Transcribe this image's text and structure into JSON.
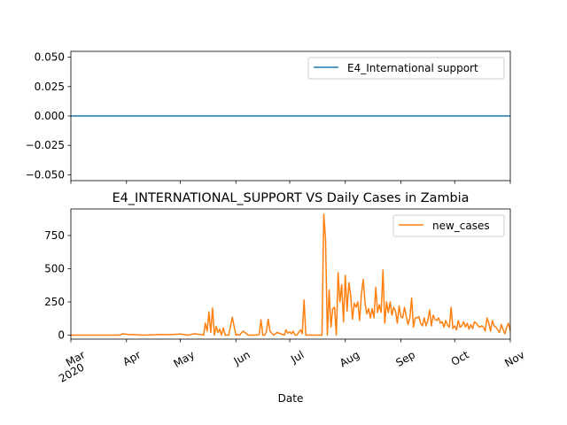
{
  "chart_data": [
    {
      "type": "line",
      "title": "",
      "xlabel": "",
      "ylabel": "",
      "ylim": [
        -0.055,
        0.055
      ],
      "yticks": [
        "0.050",
        "0.025",
        "0.000",
        "−0.025",
        "−0.050"
      ],
      "ytick_values": [
        0.05,
        0.025,
        0.0,
        -0.025,
        -0.05
      ],
      "legend_position": "upper right",
      "series": [
        {
          "name": "E4_International support",
          "color": "#1f77b4",
          "x": [
            "2020-03-01",
            "2020-11-01"
          ],
          "values": [
            0,
            0
          ]
        }
      ]
    },
    {
      "type": "line",
      "title": "E4_INTERNATIONAL_SUPPORT VS Daily Cases in Zambia",
      "xlabel": "Date",
      "ylabel": "",
      "ylim": [
        -30,
        950
      ],
      "yticks": [
        "0",
        "250",
        "500",
        "750"
      ],
      "ytick_values": [
        0,
        250,
        500,
        750
      ],
      "xlim": [
        "2020-03-01",
        "2020-11-01"
      ],
      "xticks": [
        {
          "date": "2020-03-01",
          "label": "Mar",
          "sublabel": "2020"
        },
        {
          "date": "2020-04-01",
          "label": "Apr",
          "sublabel": ""
        },
        {
          "date": "2020-05-01",
          "label": "May",
          "sublabel": ""
        },
        {
          "date": "2020-06-01",
          "label": "Jun",
          "sublabel": ""
        },
        {
          "date": "2020-07-01",
          "label": "Jul",
          "sublabel": ""
        },
        {
          "date": "2020-08-01",
          "label": "Aug",
          "sublabel": ""
        },
        {
          "date": "2020-09-01",
          "label": "Sep",
          "sublabel": ""
        },
        {
          "date": "2020-10-01",
          "label": "Oct",
          "sublabel": ""
        },
        {
          "date": "2020-11-01",
          "label": "Nov",
          "sublabel": ""
        }
      ],
      "legend_position": "upper right",
      "series": [
        {
          "name": "new_cases",
          "color": "#ff7f0e",
          "x": [
            "2020-03-01",
            "2020-03-18",
            "2020-03-28",
            "2020-03-30",
            "2020-04-02",
            "2020-04-06",
            "2020-04-10",
            "2020-04-15",
            "2020-04-20",
            "2020-04-25",
            "2020-05-01",
            "2020-05-05",
            "2020-05-09",
            "2020-05-12",
            "2020-05-14",
            "2020-05-15",
            "2020-05-16",
            "2020-05-17",
            "2020-05-18",
            "2020-05-19",
            "2020-05-20",
            "2020-05-21",
            "2020-05-22",
            "2020-05-23",
            "2020-05-24",
            "2020-05-25",
            "2020-05-26",
            "2020-05-27",
            "2020-05-28",
            "2020-05-30",
            "2020-06-01",
            "2020-06-02",
            "2020-06-03",
            "2020-06-05",
            "2020-06-08",
            "2020-06-10",
            "2020-06-12",
            "2020-06-14",
            "2020-06-15",
            "2020-06-16",
            "2020-06-17",
            "2020-06-18",
            "2020-06-19",
            "2020-06-20",
            "2020-06-22",
            "2020-06-24",
            "2020-06-26",
            "2020-06-28",
            "2020-06-29",
            "2020-06-30",
            "2020-07-01",
            "2020-07-02",
            "2020-07-03",
            "2020-07-04",
            "2020-07-05",
            "2020-07-07",
            "2020-07-08",
            "2020-07-09",
            "2020-07-10",
            "2020-07-11",
            "2020-07-13",
            "2020-07-15",
            "2020-07-17",
            "2020-07-18",
            "2020-07-19",
            "2020-07-20",
            "2020-07-21",
            "2020-07-22",
            "2020-07-23",
            "2020-07-24",
            "2020-07-25",
            "2020-07-26",
            "2020-07-27",
            "2020-07-28",
            "2020-07-29",
            "2020-07-30",
            "2020-07-31",
            "2020-08-01",
            "2020-08-02",
            "2020-08-03",
            "2020-08-04",
            "2020-08-05",
            "2020-08-06",
            "2020-08-07",
            "2020-08-08",
            "2020-08-09",
            "2020-08-10",
            "2020-08-11",
            "2020-08-12",
            "2020-08-13",
            "2020-08-14",
            "2020-08-15",
            "2020-08-16",
            "2020-08-17",
            "2020-08-18",
            "2020-08-19",
            "2020-08-20",
            "2020-08-21",
            "2020-08-22",
            "2020-08-23",
            "2020-08-24",
            "2020-08-25",
            "2020-08-26",
            "2020-08-27",
            "2020-08-28",
            "2020-08-29",
            "2020-08-30",
            "2020-08-31",
            "2020-09-01",
            "2020-09-02",
            "2020-09-03",
            "2020-09-04",
            "2020-09-05",
            "2020-09-06",
            "2020-09-07",
            "2020-09-08",
            "2020-09-09",
            "2020-09-10",
            "2020-09-11",
            "2020-09-12",
            "2020-09-13",
            "2020-09-14",
            "2020-09-15",
            "2020-09-16",
            "2020-09-17",
            "2020-09-18",
            "2020-09-19",
            "2020-09-20",
            "2020-09-21",
            "2020-09-22",
            "2020-09-23",
            "2020-09-24",
            "2020-09-25",
            "2020-09-26",
            "2020-09-27",
            "2020-09-28",
            "2020-09-29",
            "2020-09-30",
            "2020-10-01",
            "2020-10-02",
            "2020-10-03",
            "2020-10-04",
            "2020-10-05",
            "2020-10-06",
            "2020-10-07",
            "2020-10-08",
            "2020-10-09",
            "2020-10-10",
            "2020-10-11",
            "2020-10-12",
            "2020-10-13",
            "2020-10-14",
            "2020-10-15",
            "2020-10-16",
            "2020-10-17",
            "2020-10-18",
            "2020-10-19",
            "2020-10-20",
            "2020-10-21",
            "2020-10-22",
            "2020-10-23",
            "2020-10-24",
            "2020-10-25",
            "2020-10-26",
            "2020-10-27",
            "2020-10-28",
            "2020-10-29",
            "2020-10-30",
            "2020-10-31",
            "2020-11-01"
          ],
          "values": [
            0,
            0,
            0,
            10,
            5,
            3,
            0,
            2,
            5,
            3,
            8,
            0,
            10,
            5,
            0,
            90,
            30,
            175,
            20,
            205,
            0,
            65,
            20,
            45,
            0,
            55,
            0,
            0,
            0,
            135,
            0,
            5,
            0,
            30,
            0,
            0,
            0,
            5,
            115,
            0,
            0,
            25,
            120,
            30,
            0,
            20,
            10,
            0,
            40,
            15,
            25,
            10,
            30,
            0,
            0,
            40,
            10,
            265,
            0,
            0,
            0,
            0,
            0,
            0,
            0,
            910,
            720,
            0,
            340,
            60,
            200,
            210,
            0,
            470,
            250,
            380,
            100,
            450,
            180,
            395,
            300,
            120,
            240,
            210,
            250,
            110,
            310,
            420,
            240,
            160,
            200,
            130,
            200,
            130,
            360,
            170,
            230,
            170,
            490,
            90,
            250,
            170,
            250,
            150,
            210,
            180,
            90,
            220,
            140,
            130,
            210,
            140,
            80,
            130,
            280,
            60,
            130,
            130,
            140,
            90,
            70,
            130,
            70,
            110,
            190,
            70,
            150,
            120,
            110,
            130,
            90,
            100,
            60,
            110,
            75,
            60,
            210,
            50,
            70,
            40,
            110,
            60,
            70,
            100,
            60,
            90,
            45,
            80,
            50,
            100,
            90,
            70,
            60,
            70,
            60,
            30,
            130,
            90,
            30,
            110,
            70,
            60,
            40,
            20,
            80,
            40,
            10,
            60,
            90,
            30
          ]
        }
      ]
    }
  ]
}
